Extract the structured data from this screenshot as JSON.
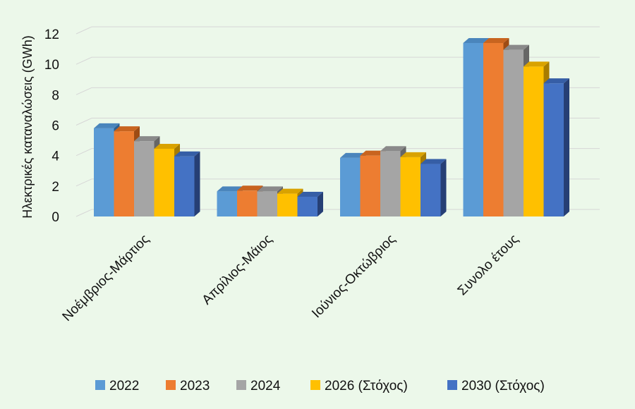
{
  "chart_data": {
    "type": "bar",
    "title": "",
    "ylabel": "Ηλεκτρικές καταναλώσεις (GWh)",
    "xlabel": "",
    "ylim": [
      0,
      12
    ],
    "yticks": [
      "0",
      "2",
      "4",
      "6",
      "8",
      "10",
      "12"
    ],
    "categories": [
      "Νοέμβριος-Μάρτιος",
      "Απρίλιος-Μάιος",
      "Ιούνιος-Οκτώβριος",
      "Συνολο έτους"
    ],
    "series": [
      {
        "name": "2022",
        "values": [
          5.8,
          1.65,
          3.85,
          11.4
        ]
      },
      {
        "name": "2023",
        "values": [
          5.6,
          1.7,
          4.0,
          11.4
        ]
      },
      {
        "name": "2024",
        "values": [
          4.95,
          1.65,
          4.3,
          10.95
        ]
      },
      {
        "name": "2026 (Στόχος)",
        "values": [
          4.45,
          1.5,
          3.9,
          9.85
        ]
      },
      {
        "name": "2030 (Στόχος)",
        "values": [
          3.95,
          1.3,
          3.45,
          8.75
        ]
      }
    ],
    "grid": true,
    "legend": "bottom",
    "colors": [
      "#5b9bd5",
      "#ed7d31",
      "#a5a5a5",
      "#ffc000",
      "#4472c4"
    ],
    "top_colors": [
      "#4a85bc",
      "#c8641f",
      "#8a8a8a",
      "#d9a200",
      "#365ea6"
    ],
    "side_colors": [
      "#2e5f8f",
      "#9e4c14",
      "#666666",
      "#a87c00",
      "#263f75"
    ],
    "background": "#ecf8ea"
  }
}
